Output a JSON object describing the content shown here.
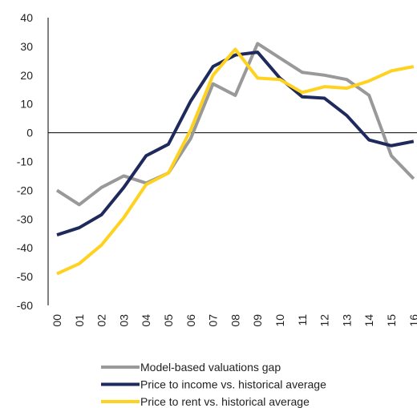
{
  "chart_data": {
    "type": "line",
    "categories": [
      "00",
      "01",
      "02",
      "03",
      "04",
      "05",
      "06",
      "07",
      "08",
      "09",
      "10",
      "11",
      "12",
      "13",
      "14",
      "15",
      "16"
    ],
    "series": [
      {
        "name": "Model-based valuations gap",
        "color": "#999999",
        "values": [
          -20,
          -25,
          -19,
          -15,
          -17.5,
          -14,
          -2,
          17,
          13,
          31,
          26,
          21,
          20,
          18.5,
          13,
          -8,
          -16
        ]
      },
      {
        "name": "Price to income vs. historical average",
        "color": "#1f2a5c",
        "values": [
          -35.5,
          -33,
          -28.5,
          -19,
          -8,
          -4,
          11,
          23,
          27,
          28,
          19,
          12.5,
          12,
          6,
          -2.5,
          -4.5,
          -3
        ]
      },
      {
        "name": "Price to rent vs. historical average",
        "color": "#ffd21f",
        "values": [
          -49,
          -45.5,
          -39,
          -29.5,
          -18,
          -14,
          1,
          20,
          29,
          19,
          18.5,
          14,
          16,
          15.5,
          18,
          21.5,
          23
        ]
      }
    ],
    "ylim": [
      -60,
      40
    ],
    "yticks": [
      -60,
      -50,
      -40,
      -30,
      -20,
      -10,
      0,
      10,
      20,
      30,
      40
    ]
  }
}
